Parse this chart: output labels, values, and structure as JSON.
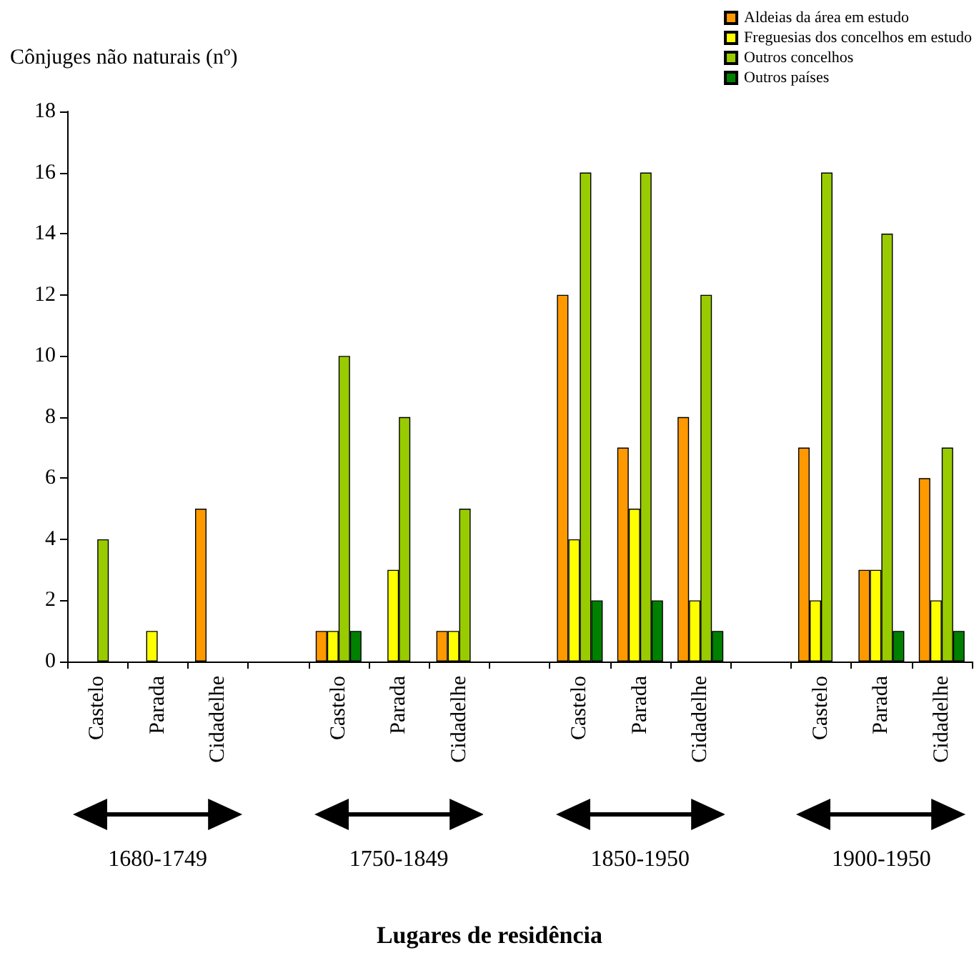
{
  "chart_data": {
    "type": "bar",
    "ylabel": "Cônjuges não naturais (nº)",
    "categories": [
      "Castelo",
      "Parada",
      "Cidadelhe",
      null,
      "Castelo",
      "Parada",
      "Cidadelhe",
      null,
      "Castelo",
      "Parada",
      "Cidadelhe",
      null,
      "Castelo",
      "Parada",
      "Cidadelhe"
    ],
    "series": [
      {
        "name": "Aldeias da área em estudo",
        "color": "#ff9900",
        "values": [
          null,
          null,
          5,
          null,
          1,
          null,
          1,
          null,
          12,
          7,
          8,
          null,
          7,
          3,
          6
        ]
      },
      {
        "name": "Freguesias dos concelhos em estudo",
        "color": "#ffff00",
        "values": [
          null,
          1,
          null,
          null,
          1,
          3,
          1,
          null,
          4,
          5,
          2,
          null,
          2,
          3,
          2
        ]
      },
      {
        "name": "Outros concelhos",
        "color": "#99cc00",
        "values": [
          4,
          null,
          null,
          null,
          10,
          8,
          5,
          null,
          16,
          16,
          12,
          null,
          16,
          14,
          7
        ]
      },
      {
        "name": "Outros países",
        "color": "#008000",
        "values": [
          null,
          null,
          null,
          null,
          1,
          null,
          null,
          null,
          2,
          2,
          1,
          null,
          null,
          1,
          1
        ]
      }
    ],
    "ylim": [
      0,
      18
    ],
    "yticks": [
      0,
      2,
      4,
      6,
      8,
      10,
      12,
      14,
      16,
      18
    ],
    "grid": false,
    "legend": "top right",
    "annotations": [
      "1680-1749",
      "1750-1849",
      "1850-1950",
      "1900-1950",
      "Lugares de residência"
    ]
  }
}
